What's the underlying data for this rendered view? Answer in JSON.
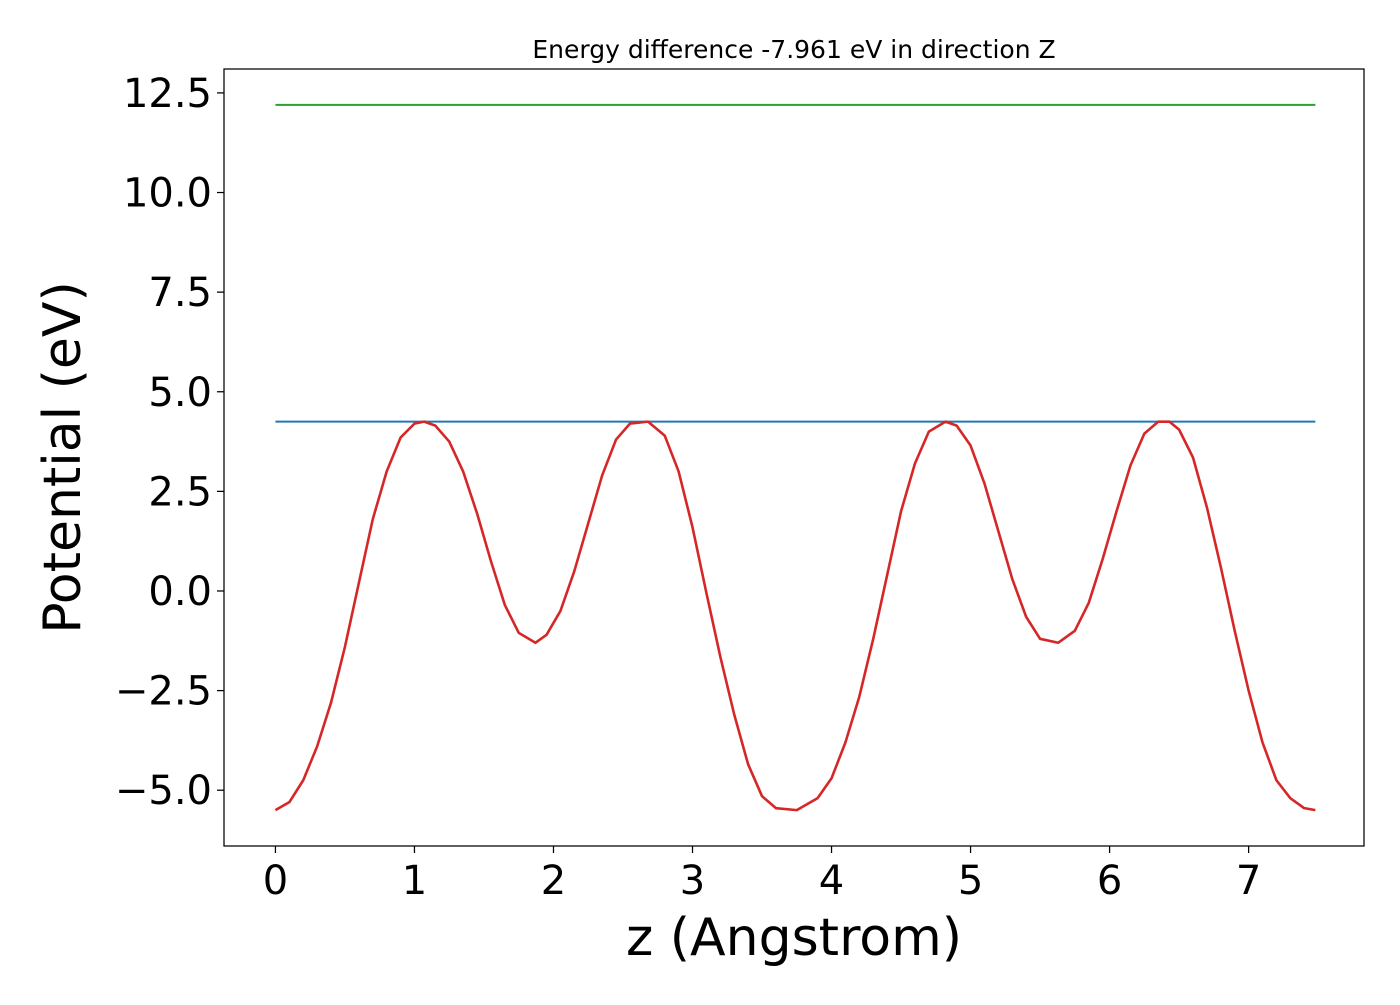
{
  "chart_data": {
    "type": "line",
    "title": "Energy difference -7.961 eV in direction Z",
    "xlabel": "z (Angstrom)",
    "ylabel": "Potential (eV)",
    "xlim": [
      -0.37,
      7.83
    ],
    "ylim": [
      -6.4,
      13.1
    ],
    "xticks": [
      0,
      1,
      2,
      3,
      4,
      5,
      6,
      7
    ],
    "xtick_labels": [
      "0",
      "1",
      "2",
      "3",
      "4",
      "5",
      "6",
      "7"
    ],
    "yticks": [
      12.5,
      10.0,
      7.5,
      5.0,
      2.5,
      0.0,
      -2.5,
      -5.0
    ],
    "ytick_labels": [
      "12.5",
      "10.0",
      "7.5",
      "5.0",
      "2.5",
      "0.0",
      "−2.5",
      "−5.0"
    ],
    "grid": false,
    "series": [
      {
        "color": "#d62728",
        "x": [
          0.0,
          0.1,
          0.2,
          0.3,
          0.4,
          0.5,
          0.6,
          0.7,
          0.8,
          0.9,
          1.0,
          1.07,
          1.15,
          1.25,
          1.35,
          1.45,
          1.55,
          1.65,
          1.75,
          1.87,
          1.95,
          2.05,
          2.15,
          2.25,
          2.35,
          2.45,
          2.55,
          2.68,
          2.8,
          2.9,
          3.0,
          3.1,
          3.2,
          3.3,
          3.4,
          3.5,
          3.6,
          3.75,
          3.9,
          4.0,
          4.1,
          4.2,
          4.3,
          4.4,
          4.5,
          4.6,
          4.7,
          4.82,
          4.9,
          5.0,
          5.1,
          5.2,
          5.3,
          5.4,
          5.5,
          5.63,
          5.75,
          5.85,
          5.95,
          6.05,
          6.15,
          6.25,
          6.35,
          6.43,
          6.5,
          6.6,
          6.7,
          6.8,
          6.9,
          7.0,
          7.1,
          7.2,
          7.3,
          7.4,
          7.48
        ],
        "y": [
          -5.5,
          -5.3,
          -4.75,
          -3.9,
          -2.8,
          -1.4,
          0.2,
          1.8,
          3.0,
          3.85,
          4.2,
          4.25,
          4.15,
          3.75,
          3.0,
          1.95,
          0.75,
          -0.35,
          -1.05,
          -1.3,
          -1.1,
          -0.5,
          0.5,
          1.7,
          2.9,
          3.8,
          4.2,
          4.25,
          3.9,
          3.0,
          1.6,
          -0.05,
          -1.65,
          -3.1,
          -4.35,
          -5.15,
          -5.45,
          -5.5,
          -5.2,
          -4.7,
          -3.8,
          -2.65,
          -1.2,
          0.4,
          2.0,
          3.2,
          4.0,
          4.25,
          4.15,
          3.65,
          2.7,
          1.5,
          0.3,
          -0.65,
          -1.2,
          -1.3,
          -1.0,
          -0.3,
          0.8,
          2.0,
          3.15,
          3.95,
          4.25,
          4.25,
          4.05,
          3.35,
          2.1,
          0.6,
          -1.0,
          -2.5,
          -3.8,
          -4.75,
          -5.2,
          -5.45,
          -5.5
        ]
      },
      {
        "color": "#1f77b4",
        "x": [
          0.0,
          7.48
        ],
        "y": [
          4.25,
          4.25
        ]
      },
      {
        "color": "#2ca02c",
        "x": [
          0.0,
          7.48
        ],
        "y": [
          12.2,
          12.2
        ]
      }
    ]
  }
}
